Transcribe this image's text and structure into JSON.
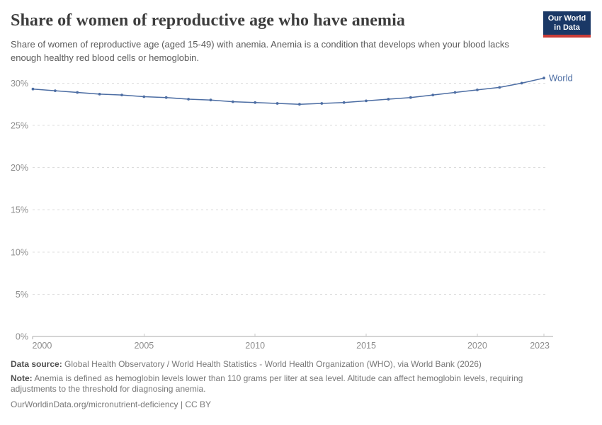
{
  "header": {
    "title": "Share of women of reproductive age who have anemia",
    "subtitle": "Share of women of reproductive age (aged 15-49) with anemia. Anemia is a condition that develops when your blood lacks enough healthy red blood cells or hemoglobin."
  },
  "logo": {
    "line1": "Our World",
    "line2": "in Data",
    "bg_color": "#1a3866",
    "stripe_color": "#c93c37"
  },
  "chart_data": {
    "type": "line",
    "title": "Share of women of reproductive age who have anemia",
    "xlabel": "",
    "ylabel": "",
    "x": [
      2000,
      2001,
      2002,
      2003,
      2004,
      2005,
      2006,
      2007,
      2008,
      2009,
      2010,
      2011,
      2012,
      2013,
      2014,
      2015,
      2016,
      2017,
      2018,
      2019,
      2020,
      2021,
      2022,
      2023
    ],
    "series": [
      {
        "name": "World",
        "color": "#4c6da3",
        "values": [
          29.3,
          29.1,
          28.9,
          28.7,
          28.6,
          28.4,
          28.3,
          28.1,
          28.0,
          27.8,
          27.7,
          27.6,
          27.5,
          27.6,
          27.7,
          27.9,
          28.1,
          28.3,
          28.6,
          28.9,
          29.2,
          29.5,
          30.0,
          30.6
        ]
      }
    ],
    "x_ticks": [
      2000,
      2005,
      2010,
      2015,
      2020,
      2023
    ],
    "y_ticks": [
      0,
      5,
      10,
      15,
      20,
      25,
      30
    ],
    "y_tick_suffix": "%",
    "ylim": [
      0,
      31.5
    ],
    "xlim": [
      2000,
      2023
    ],
    "grid": true,
    "gridline_color": "#dcdcdc",
    "axis_color": "#a8a8a8",
    "tick_label_color": "#8e8e8e",
    "legend": "end-of-line-label"
  },
  "footer": {
    "source_label": "Data source:",
    "source_text": "Global Health Observatory / World Health Statistics - World Health Organization (WHO), via World Bank (2026)",
    "note_label": "Note:",
    "note_text": "Anemia is defined as hemoglobin levels lower than 110 grams per liter at sea level. Altitude can affect hemoglobin levels, requiring adjustments to the threshold for diagnosing anemia.",
    "citation": "OurWorldinData.org/micronutrient-deficiency | CC BY"
  }
}
